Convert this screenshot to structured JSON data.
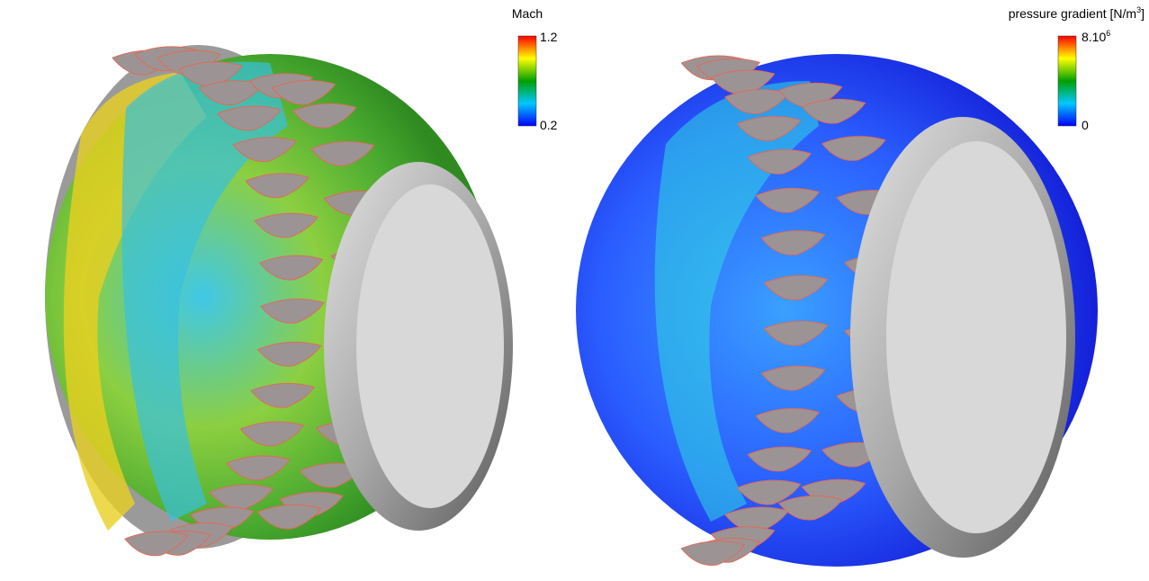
{
  "panels": [
    {
      "colorbar": {
        "title": "Mach",
        "max_label": "1.2",
        "min_label": "0.2"
      }
    },
    {
      "colorbar": {
        "title": {
          "text": "pressure gradient [N/m",
          "sup": "3",
          "end": "]"
        },
        "max_label": {
          "base": "8.10",
          "sup": "6"
        },
        "min_label": "0"
      }
    }
  ]
}
